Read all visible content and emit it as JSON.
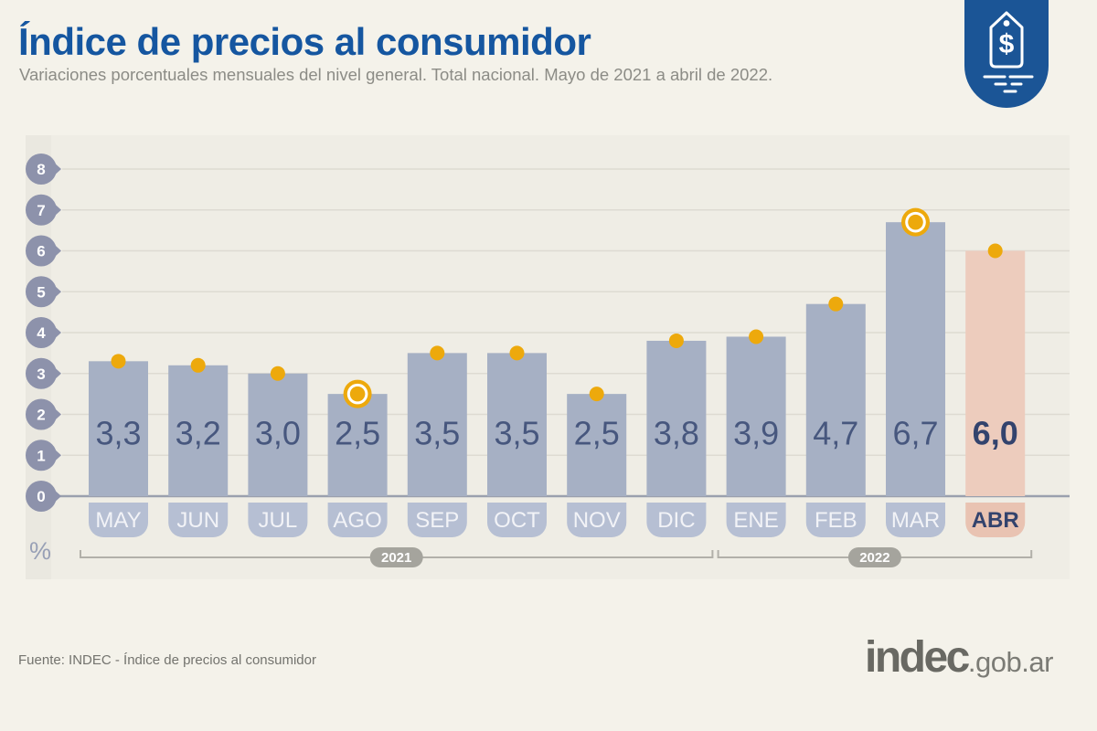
{
  "header": {
    "title": "Índice de precios al consumidor",
    "subtitle": "Variaciones porcentuales mensuales del nivel general. Total nacional. Mayo de 2021 a abril de 2022."
  },
  "logo_badge": {
    "icon": "price-tag-icon",
    "symbol": "$",
    "color": "#1b5596"
  },
  "chart_data": {
    "type": "bar",
    "title": "Índice de precios al consumidor",
    "categories": [
      "MAY",
      "JUN",
      "JUL",
      "AGO",
      "SEP",
      "OCT",
      "NOV",
      "DIC",
      "ENE",
      "FEB",
      "MAR",
      "ABR"
    ],
    "values": [
      3.3,
      3.2,
      3.0,
      2.5,
      3.5,
      3.5,
      2.5,
      3.8,
      3.9,
      4.7,
      6.7,
      6.0
    ],
    "value_labels": [
      "3,3",
      "3,2",
      "3,0",
      "2,5",
      "3,5",
      "3,5",
      "2,5",
      "3,8",
      "3,9",
      "4,7",
      "6,7",
      "6,0"
    ],
    "ylabel": "%",
    "ylim": [
      0,
      8
    ],
    "yticks": [
      "0",
      "1",
      "2",
      "3",
      "4",
      "5",
      "6",
      "7",
      "8"
    ],
    "grid": true,
    "legend": false,
    "highlight_index": 11,
    "ring_marker_indices": [
      3,
      10
    ],
    "year_groups": [
      {
        "label": "2021",
        "from_index": 0,
        "to_index": 7
      },
      {
        "label": "2022",
        "from_index": 8,
        "to_index": 11
      }
    ],
    "colors": {
      "bar": "#a6b0c4",
      "bar_highlight": "#edccbd",
      "marker": "#eda90c",
      "marker_ring_gap": "#ffffff",
      "ytick_bubble": "#8d92ab",
      "ytick_text": "#ffffff",
      "month_tab": "#b6bfd3",
      "month_tab_highlight": "#e9c3b2",
      "month_text": "#f2f3f7",
      "month_text_highlight": "#33436d",
      "value_text": "#47577e",
      "value_text_highlight": "#33436d",
      "gridline": "#dedbd2",
      "baseline": "#9aa0ae",
      "panel": "#efede5",
      "axis_band": "#eae8e0",
      "year_pill": "#a5a49d",
      "year_pill_text": "#ffffff",
      "bracket": "#b2b0a9",
      "pct_label": "#98a0b6"
    }
  },
  "footer": {
    "source": "Fuente: INDEC - Índice de precios al consumidor",
    "brand": {
      "name": "indec",
      "suffix": ".gob.ar"
    }
  }
}
